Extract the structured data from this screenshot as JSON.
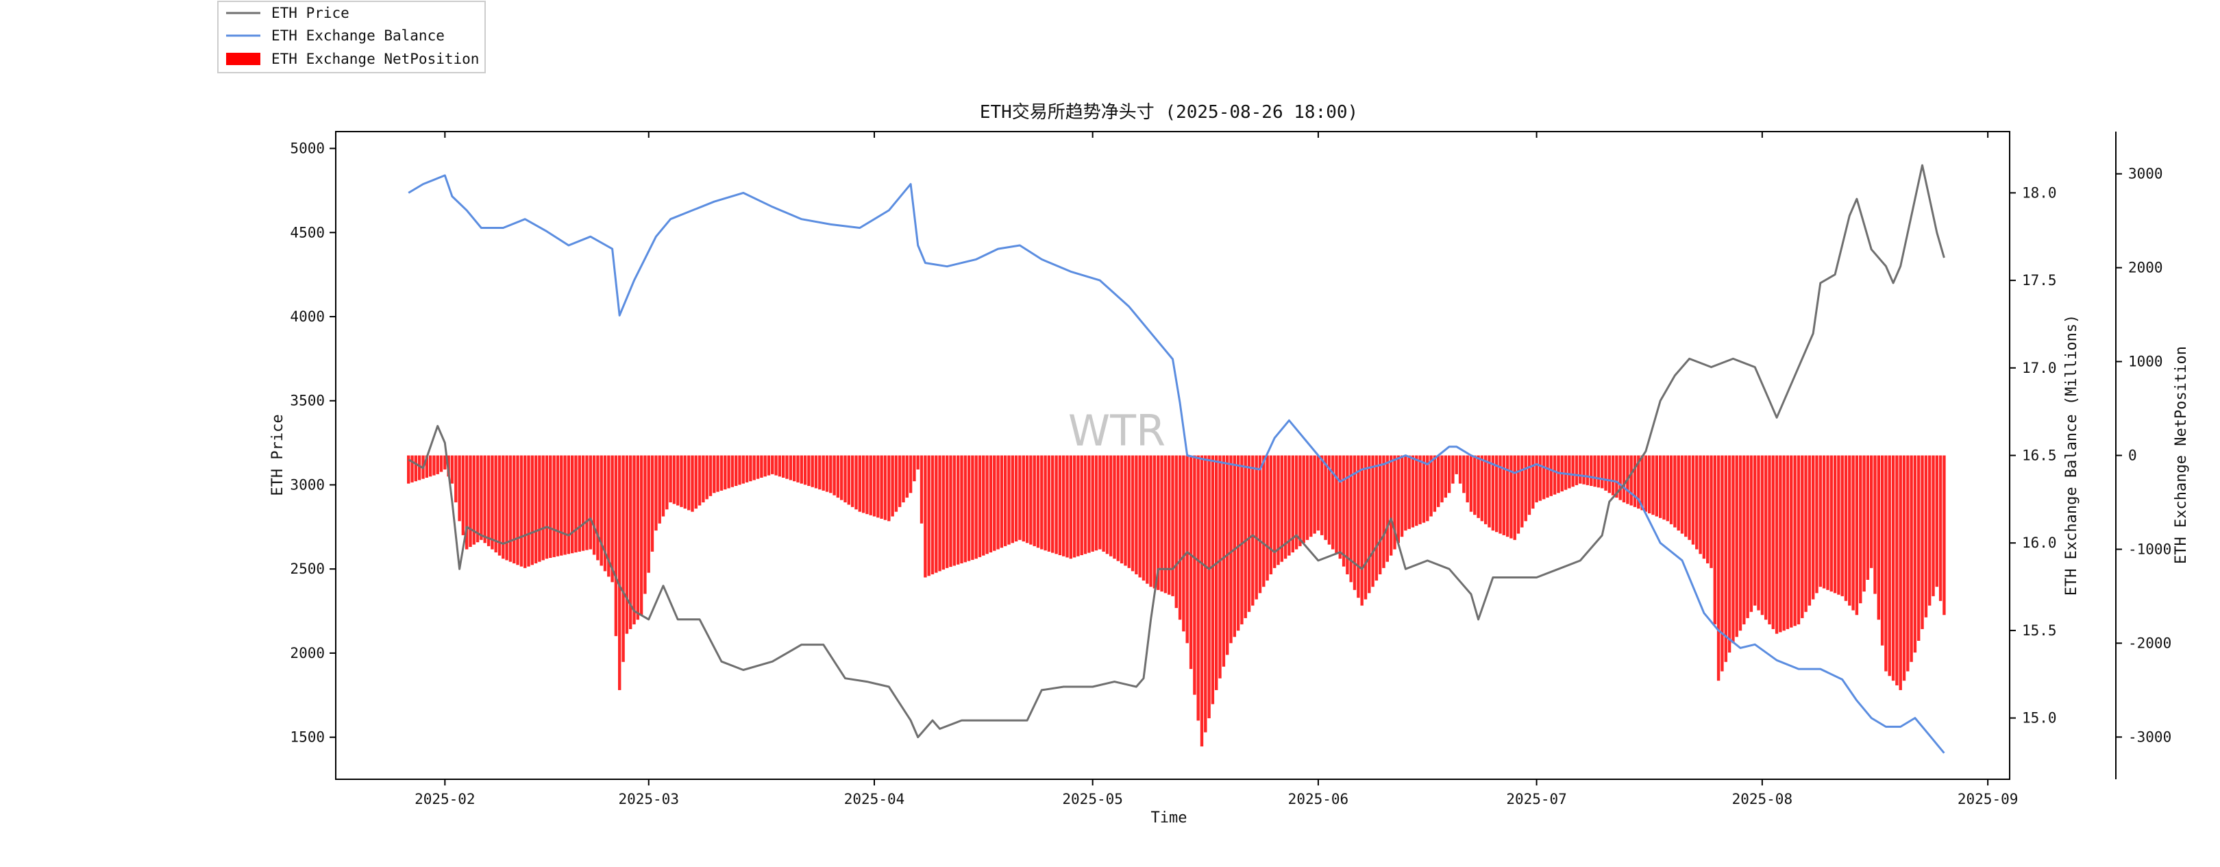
{
  "chart_data": {
    "type": "line",
    "title": "ETH交易所趋势净头寸 (2025-08-26 18:00)",
    "xlabel": "Time",
    "watermark": "WTR",
    "x_ticks": [
      "2025-02",
      "2025-03",
      "2025-04",
      "2025-05",
      "2025-06",
      "2025-07",
      "2025-08",
      "2025-09"
    ],
    "x_range": [
      "2025-01-17",
      "2025-09-04"
    ],
    "axes": {
      "price": {
        "label": "ETH Price",
        "ylim": [
          1250,
          5100
        ],
        "ticks": [
          "1500",
          "2000",
          "2500",
          "3000",
          "3500",
          "4000",
          "4500",
          "5000"
        ]
      },
      "balance": {
        "label": "ETH Exchange Balance (Millions)",
        "ylim": [
          14.65,
          18.35
        ],
        "ticks": [
          "15.0",
          "15.5",
          "16.0",
          "16.5",
          "17.0",
          "17.5",
          "18.0"
        ]
      },
      "netposition": {
        "label": "ETH Exchange NetPosition",
        "ylim": [
          -3450,
          3450
        ],
        "ticks": [
          "-3000",
          "-2000",
          "-1000",
          "0",
          "1000",
          "2000",
          "3000"
        ]
      }
    },
    "legend": {
      "placement": "top-left, outside plot",
      "items": [
        "ETH Price",
        "ETH Exchange Balance",
        "ETH Exchange NetPosition"
      ]
    },
    "colors": {
      "price": "#6f6f6f",
      "balance": "#5b8de0",
      "netposition": "#ff0000"
    },
    "series": [
      {
        "name": "ETH Price",
        "axis": "price",
        "x": [
          "2025-01-27",
          "2025-01-29",
          "2025-01-31",
          "2025-02-01",
          "2025-02-02",
          "2025-02-03",
          "2025-02-04",
          "2025-02-06",
          "2025-02-09",
          "2025-02-12",
          "2025-02-15",
          "2025-02-18",
          "2025-02-21",
          "2025-02-24",
          "2025-02-25",
          "2025-02-27",
          "2025-03-01",
          "2025-03-03",
          "2025-03-05",
          "2025-03-08",
          "2025-03-11",
          "2025-03-14",
          "2025-03-18",
          "2025-03-22",
          "2025-03-25",
          "2025-03-28",
          "2025-03-31",
          "2025-04-03",
          "2025-04-06",
          "2025-04-07",
          "2025-04-09",
          "2025-04-10",
          "2025-04-13",
          "2025-04-16",
          "2025-04-19",
          "2025-04-22",
          "2025-04-24",
          "2025-04-27",
          "2025-05-01",
          "2025-05-04",
          "2025-05-07",
          "2025-05-08",
          "2025-05-09",
          "2025-05-10",
          "2025-05-12",
          "2025-05-14",
          "2025-05-17",
          "2025-05-20",
          "2025-05-23",
          "2025-05-26",
          "2025-05-29",
          "2025-06-01",
          "2025-06-04",
          "2025-06-07",
          "2025-06-10",
          "2025-06-11",
          "2025-06-13",
          "2025-06-16",
          "2025-06-19",
          "2025-06-22",
          "2025-06-23",
          "2025-06-25",
          "2025-06-28",
          "2025-07-01",
          "2025-07-04",
          "2025-07-07",
          "2025-07-10",
          "2025-07-11",
          "2025-07-13",
          "2025-07-16",
          "2025-07-18",
          "2025-07-20",
          "2025-07-22",
          "2025-07-25",
          "2025-07-28",
          "2025-07-31",
          "2025-08-02",
          "2025-08-03",
          "2025-08-05",
          "2025-08-08",
          "2025-08-09",
          "2025-08-11",
          "2025-08-13",
          "2025-08-14",
          "2025-08-16",
          "2025-08-18",
          "2025-08-19",
          "2025-08-20",
          "2025-08-22",
          "2025-08-23",
          "2025-08-24",
          "2025-08-25",
          "2025-08-26"
        ],
        "values": [
          3150,
          3100,
          3350,
          3250,
          2900,
          2500,
          2750,
          2700,
          2650,
          2700,
          2750,
          2700,
          2800,
          2500,
          2400,
          2250,
          2200,
          2400,
          2200,
          2200,
          1950,
          1900,
          1950,
          2050,
          2050,
          1850,
          1830,
          1800,
          1600,
          1500,
          1600,
          1550,
          1600,
          1600,
          1600,
          1600,
          1780,
          1800,
          1800,
          1830,
          1800,
          1850,
          2200,
          2500,
          2500,
          2600,
          2500,
          2600,
          2700,
          2600,
          2700,
          2550,
          2600,
          2500,
          2700,
          2800,
          2500,
          2550,
          2500,
          2350,
          2200,
          2450,
          2450,
          2450,
          2500,
          2550,
          2700,
          2900,
          3000,
          3200,
          3500,
          3650,
          3750,
          3700,
          3750,
          3700,
          3500,
          3400,
          3600,
          3900,
          4200,
          4250,
          4600,
          4700,
          4400,
          4300,
          4200,
          4300,
          4700,
          4900,
          4700,
          4500,
          4350
        ]
      },
      {
        "name": "ETH Exchange Balance",
        "axis": "balance",
        "x": [
          "2025-01-27",
          "2025-01-29",
          "2025-02-01",
          "2025-02-02",
          "2025-02-04",
          "2025-02-06",
          "2025-02-09",
          "2025-02-12",
          "2025-02-15",
          "2025-02-18",
          "2025-02-21",
          "2025-02-24",
          "2025-02-25",
          "2025-02-27",
          "2025-03-02",
          "2025-03-04",
          "2025-03-07",
          "2025-03-10",
          "2025-03-14",
          "2025-03-18",
          "2025-03-22",
          "2025-03-26",
          "2025-03-30",
          "2025-04-03",
          "2025-04-06",
          "2025-04-07",
          "2025-04-08",
          "2025-04-11",
          "2025-04-15",
          "2025-04-18",
          "2025-04-21",
          "2025-04-24",
          "2025-04-28",
          "2025-05-02",
          "2025-05-06",
          "2025-05-09",
          "2025-05-12",
          "2025-05-13",
          "2025-05-14",
          "2025-05-16",
          "2025-05-20",
          "2025-05-24",
          "2025-05-26",
          "2025-05-28",
          "2025-06-01",
          "2025-06-04",
          "2025-06-07",
          "2025-06-10",
          "2025-06-13",
          "2025-06-16",
          "2025-06-19",
          "2025-06-20",
          "2025-06-22",
          "2025-06-25",
          "2025-06-28",
          "2025-07-01",
          "2025-07-04",
          "2025-07-08",
          "2025-07-12",
          "2025-07-15",
          "2025-07-18",
          "2025-07-21",
          "2025-07-24",
          "2025-07-26",
          "2025-07-29",
          "2025-07-31",
          "2025-08-03",
          "2025-08-06",
          "2025-08-09",
          "2025-08-12",
          "2025-08-14",
          "2025-08-16",
          "2025-08-18",
          "2025-08-20",
          "2025-08-22",
          "2025-08-24",
          "2025-08-25",
          "2025-08-26"
        ],
        "values": [
          18.0,
          18.05,
          18.1,
          17.98,
          17.9,
          17.8,
          17.8,
          17.85,
          17.78,
          17.7,
          17.75,
          17.68,
          17.3,
          17.5,
          17.75,
          17.85,
          17.9,
          17.95,
          18.0,
          17.92,
          17.85,
          17.82,
          17.8,
          17.9,
          18.05,
          17.7,
          17.6,
          17.58,
          17.62,
          17.68,
          17.7,
          17.62,
          17.55,
          17.5,
          17.35,
          17.2,
          17.05,
          16.8,
          16.5,
          16.48,
          16.45,
          16.42,
          16.6,
          16.7,
          16.5,
          16.35,
          16.42,
          16.45,
          16.5,
          16.45,
          16.55,
          16.55,
          16.5,
          16.45,
          16.4,
          16.45,
          16.4,
          16.38,
          16.35,
          16.25,
          16.0,
          15.9,
          15.6,
          15.5,
          15.4,
          15.42,
          15.33,
          15.28,
          15.28,
          15.22,
          15.1,
          15.0,
          14.95,
          14.95,
          15.0,
          14.9,
          14.85,
          14.8
        ]
      },
      {
        "name": "ETH Exchange NetPosition",
        "axis": "netposition",
        "type": "bar",
        "x": [
          "2025-01-27",
          "2025-01-29",
          "2025-01-31",
          "2025-02-01",
          "2025-02-02",
          "2025-02-03",
          "2025-02-04",
          "2025-02-06",
          "2025-02-09",
          "2025-02-12",
          "2025-02-15",
          "2025-02-18",
          "2025-02-21",
          "2025-02-24",
          "2025-02-25",
          "2025-02-26",
          "2025-02-28",
          "2025-03-02",
          "2025-03-04",
          "2025-03-07",
          "2025-03-10",
          "2025-03-14",
          "2025-03-18",
          "2025-03-22",
          "2025-03-26",
          "2025-03-30",
          "2025-04-03",
          "2025-04-06",
          "2025-04-07",
          "2025-04-08",
          "2025-04-11",
          "2025-04-15",
          "2025-04-18",
          "2025-04-21",
          "2025-04-24",
          "2025-04-28",
          "2025-05-02",
          "2025-05-06",
          "2025-05-09",
          "2025-05-12",
          "2025-05-14",
          "2025-05-16",
          "2025-05-18",
          "2025-05-20",
          "2025-05-23",
          "2025-05-26",
          "2025-05-29",
          "2025-06-01",
          "2025-06-04",
          "2025-06-07",
          "2025-06-10",
          "2025-06-13",
          "2025-06-16",
          "2025-06-19",
          "2025-06-20",
          "2025-06-22",
          "2025-06-25",
          "2025-06-28",
          "2025-07-01",
          "2025-07-04",
          "2025-07-07",
          "2025-07-10",
          "2025-07-13",
          "2025-07-16",
          "2025-07-19",
          "2025-07-22",
          "2025-07-25",
          "2025-07-26",
          "2025-07-28",
          "2025-07-31",
          "2025-08-03",
          "2025-08-06",
          "2025-08-09",
          "2025-08-12",
          "2025-08-14",
          "2025-08-16",
          "2025-08-18",
          "2025-08-20",
          "2025-08-22",
          "2025-08-24",
          "2025-08-25",
          "2025-08-26"
        ],
        "values": [
          -300,
          -250,
          -200,
          -150,
          -300,
          -700,
          -1000,
          -900,
          -1100,
          -1200,
          -1100,
          -1050,
          -1000,
          -1350,
          -2500,
          -1900,
          -1700,
          -800,
          -500,
          -600,
          -400,
          -300,
          -200,
          -300,
          -400,
          -600,
          -700,
          -400,
          -150,
          -1300,
          -1200,
          -1100,
          -1000,
          -900,
          -1000,
          -1100,
          -1000,
          -1200,
          -1400,
          -1500,
          -2000,
          -3100,
          -2500,
          -2000,
          -1600,
          -1200,
          -1000,
          -800,
          -1100,
          -1600,
          -1200,
          -800,
          -700,
          -400,
          -200,
          -600,
          -800,
          -900,
          -500,
          -400,
          -300,
          -350,
          -500,
          -600,
          -700,
          -900,
          -1200,
          -2400,
          -2000,
          -1600,
          -1900,
          -1800,
          -1400,
          -1500,
          -1700,
          -1200,
          -2300,
          -2500,
          -2100,
          -1600,
          -1400,
          -1700
        ]
      }
    ]
  }
}
